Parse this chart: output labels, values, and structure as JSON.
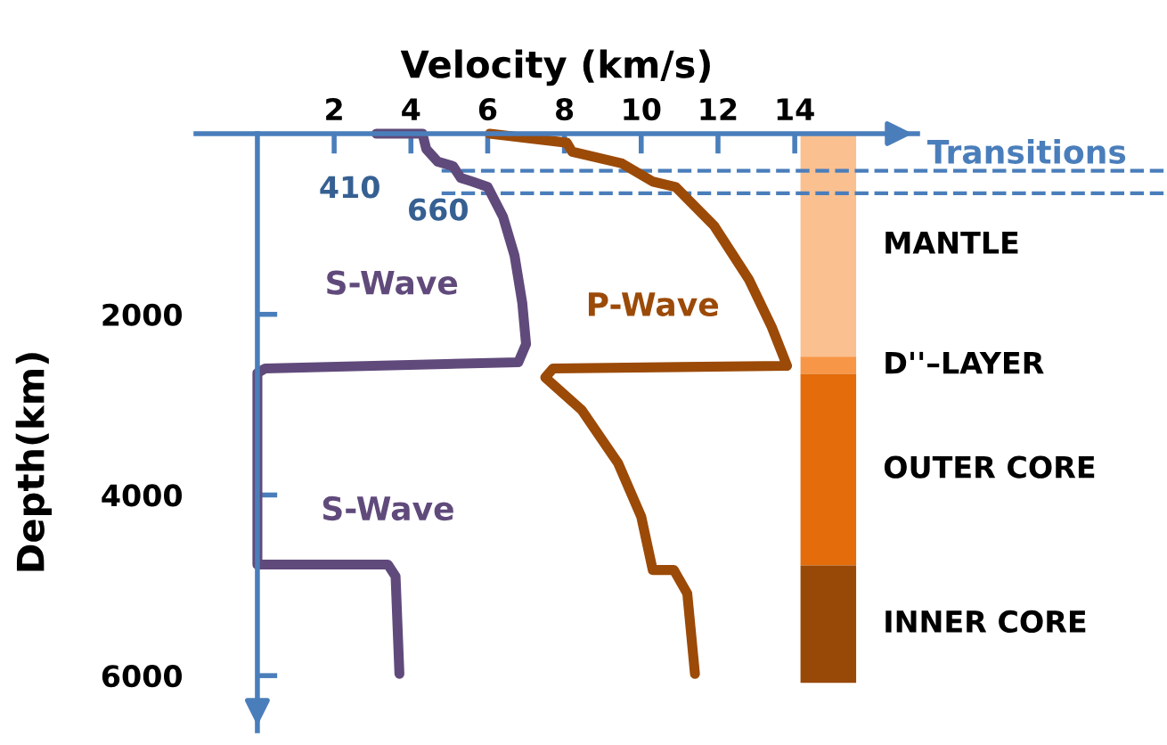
{
  "chart_data": {
    "type": "line",
    "xlabel": "Velocity (km/s)",
    "ylabel": "Depth(km)",
    "xlim": [
      -1.6,
      17.2
    ],
    "ylim": [
      6610,
      0
    ],
    "xticks": [
      2,
      4,
      6,
      8,
      10,
      12,
      14
    ],
    "yticks": [
      2000,
      4000,
      6000
    ],
    "line_style": "solid",
    "series": [
      {
        "name": "S-Wave",
        "color": "#604a7b",
        "x": [
          3.1,
          4.3,
          4.4,
          4.7,
          5.1,
          5.3,
          5.6,
          6.0,
          6.4,
          6.7,
          6.9,
          7.0,
          6.8,
          0.2,
          0,
          0,
          3.4,
          3.6,
          3.7
        ],
        "values": [
          0,
          0,
          170,
          310,
          360,
          490,
          530,
          590,
          920,
          1350,
          1870,
          2330,
          2530,
          2600,
          2650,
          4770,
          4770,
          4900,
          5980
        ]
      },
      {
        "name": "P-Wave",
        "color": "#9c4a08",
        "x": [
          6.05,
          8.06,
          8.2,
          9.5,
          10.3,
          10.9,
          11.9,
          12.8,
          13.4,
          13.8,
          7.7,
          7.5,
          8.45,
          9.4,
          10.0,
          10.3,
          10.85,
          11.2,
          11.4
        ],
        "values": [
          0,
          100,
          200,
          330,
          530,
          590,
          1020,
          1610,
          2140,
          2570,
          2600,
          2700,
          3060,
          3650,
          4240,
          4830,
          4830,
          5090,
          5980
        ]
      }
    ],
    "bands": [
      {
        "axis": "y",
        "from": 0,
        "to": 2470,
        "label": "MANTLE",
        "color": "#fac090"
      },
      {
        "axis": "y",
        "from": 2470,
        "to": 2660,
        "label": "D''–LAYER",
        "color": "#f79646"
      },
      {
        "axis": "y",
        "from": 2660,
        "to": 4780,
        "label": "OUTER CORE",
        "color": "#e46c0a"
      },
      {
        "axis": "y",
        "from": 4780,
        "to": 6080,
        "label": "INNER CORE",
        "color": "#984807"
      }
    ],
    "ref_lines": [
      {
        "axis": "y",
        "value": 410,
        "label": "410",
        "color": "#4a7ebb",
        "line_style": "dashed"
      },
      {
        "axis": "y",
        "value": 660,
        "label": "660",
        "color": "#4a7ebb",
        "line_style": "dashed"
      }
    ],
    "annotations": [
      "Transitions",
      "S-Wave"
    ]
  }
}
